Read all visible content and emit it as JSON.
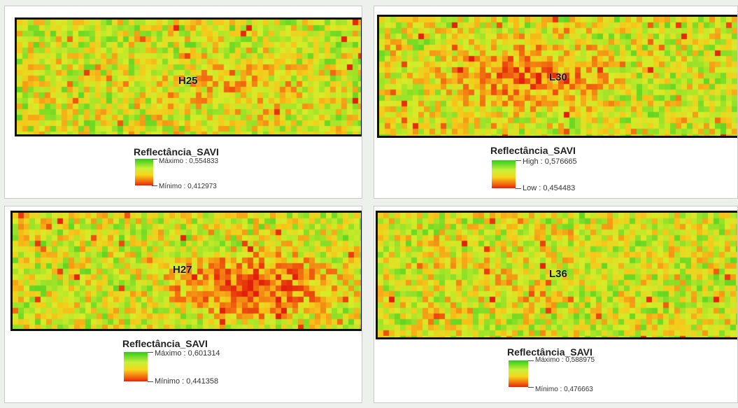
{
  "colors": {
    "ramp_high": "#2ecc1a",
    "ramp_mid": "#f6d61a",
    "ramp_low": "#e8220c",
    "frame": "#111111",
    "background": "#eef0ee"
  },
  "panels": [
    {
      "label": "H25",
      "legend": {
        "title": "Reflectância_SAVI",
        "max_text": "Máximo : 0,554833",
        "min_text": "Mínimo : 0,412973"
      },
      "max_value": 0.554833,
      "min_value": 0.412973
    },
    {
      "label": "L30",
      "legend": {
        "title": "Reflectância_SAVI",
        "max_text": "High : 0,576665",
        "min_text": "Low : 0,454483"
      },
      "max_value": 0.576665,
      "min_value": 0.454483
    },
    {
      "label": "H27",
      "legend": {
        "title": "Reflectância_SAVI",
        "max_text": "Máximo : 0,601314",
        "min_text": "Mínimo : 0,441358"
      },
      "max_value": 0.601314,
      "min_value": 0.441358
    },
    {
      "label": "L36",
      "legend": {
        "title": "Reflectância_SAVI",
        "max_text": "Máximo : 0,588975",
        "min_text": "Mínimo : 0,476663"
      },
      "max_value": 0.588975,
      "min_value": 0.476663
    }
  ]
}
